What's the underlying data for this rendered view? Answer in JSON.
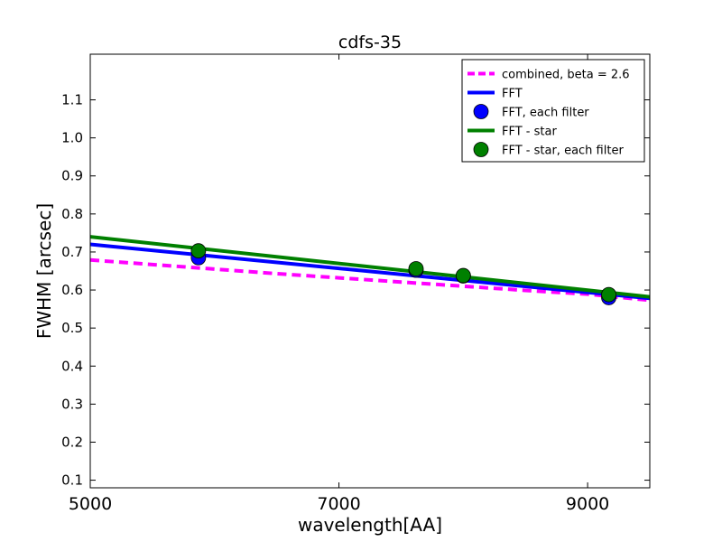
{
  "chart_data": {
    "type": "line",
    "title": "cdfs-35",
    "xlabel": "wavelength[AA]",
    "ylabel": "FWHM [arcsec]",
    "xlim": [
      5000,
      9500
    ],
    "ylim": [
      0.08,
      1.22
    ],
    "xticks": [
      5000,
      7000,
      9000
    ],
    "yticks": [
      0.1,
      0.2,
      0.3,
      0.4,
      0.5,
      0.6,
      0.7,
      0.8,
      0.9,
      1.0,
      1.1
    ],
    "xtick_labels": [
      "5000",
      "7000",
      "9000"
    ],
    "ytick_labels": [
      "0.1",
      "0.2",
      "0.3",
      "0.4",
      "0.5",
      "0.6",
      "0.7",
      "0.8",
      "0.9",
      "1.0",
      "1.1"
    ],
    "legend_position": "top-right",
    "grid": false,
    "series": [
      {
        "name": "combined, beta = 2.6",
        "kind": "line",
        "style": "dashed",
        "color": "#ff00ff",
        "x": [
          5000,
          5500,
          6000,
          6500,
          7000,
          7500,
          8000,
          8500,
          9000,
          9500
        ],
        "y": [
          0.679,
          0.667,
          0.655,
          0.643,
          0.632,
          0.621,
          0.61,
          0.599,
          0.589,
          0.573
        ]
      },
      {
        "name": "FFT",
        "kind": "line",
        "style": "solid",
        "color": "#0000ff",
        "x": [
          5000,
          9500
        ],
        "y": [
          0.72,
          0.578
        ]
      },
      {
        "name": "FFT, each filter",
        "kind": "scatter",
        "color": "#0000ff",
        "x": [
          5870,
          7620,
          8000,
          9170
        ],
        "y": [
          0.685,
          0.652,
          0.637,
          0.58
        ]
      },
      {
        "name": "FFT - star",
        "kind": "line",
        "style": "solid",
        "color": "#008000",
        "x": [
          5000,
          9500
        ],
        "y": [
          0.74,
          0.582
        ]
      },
      {
        "name": "FFT - star, each filter",
        "kind": "scatter",
        "color": "#008000",
        "x": [
          5870,
          7620,
          8000,
          9170
        ],
        "y": [
          0.703,
          0.656,
          0.638,
          0.588
        ]
      }
    ]
  }
}
